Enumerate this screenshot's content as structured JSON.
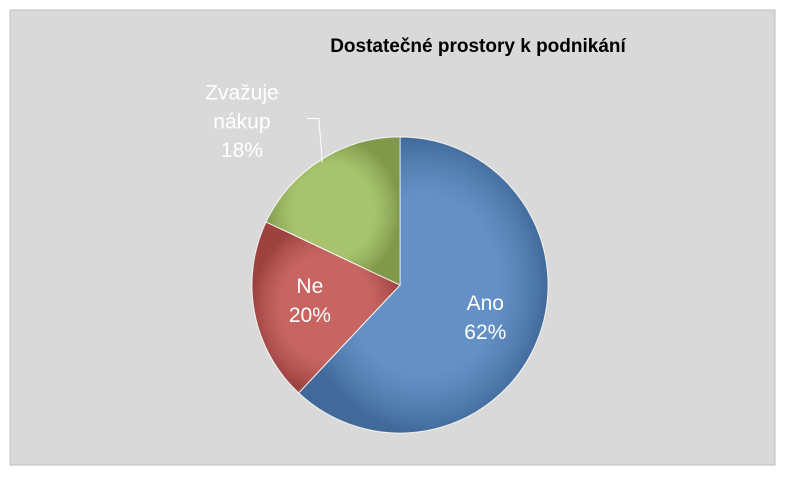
{
  "chart_data": {
    "type": "pie",
    "title": "Dostatečné prostory k podnikání",
    "categories": [
      "Ano",
      "Ne",
      "Zvažuje nákup"
    ],
    "values": [
      62,
      20,
      18
    ],
    "value_labels": [
      "62%",
      "20%",
      "18%"
    ],
    "colors": [
      "#4f81bd",
      "#c0504d",
      "#9bbb59"
    ]
  }
}
